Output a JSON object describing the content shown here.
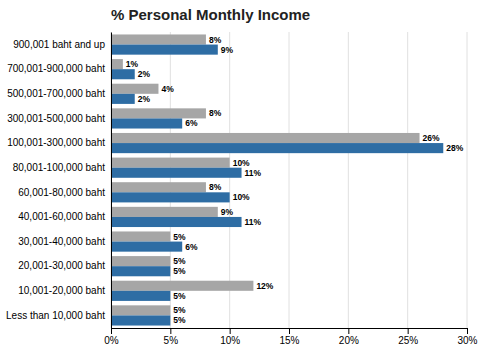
{
  "chart_data": {
    "type": "bar",
    "orientation": "horizontal",
    "title": "% Personal Monthly Income",
    "categories": [
      "Less than 10,000 baht",
      "10,001-20,000 baht",
      "20,001-30,000 baht",
      "30,001-40,000 baht",
      "40,001-60,000 baht",
      "60,001-80,000 baht",
      "80,001-100,000 baht",
      "100,001-300,000 baht",
      "300,001-500,000 baht",
      "500,001-700,000 baht",
      "700,001-900,000 baht",
      "900,001 baht and up"
    ],
    "series": [
      {
        "color": "#a6a6a6",
        "values": [
          5,
          12,
          5,
          5,
          9,
          8,
          10,
          26,
          8,
          4,
          1,
          8
        ],
        "value_labels": [
          "5%",
          "12%",
          "5%",
          "5%",
          "9%",
          "8%",
          "10%",
          "26%",
          "8%",
          "4%",
          "1%",
          "8%"
        ]
      },
      {
        "color": "#2e6da4",
        "values": [
          5,
          5,
          5,
          6,
          11,
          10,
          11,
          28,
          6,
          2,
          2,
          9
        ],
        "value_labels": [
          "5%",
          "5%",
          "5%",
          "6%",
          "11%",
          "10%",
          "11%",
          "28%",
          "6%",
          "2%",
          "2%",
          "9%"
        ]
      }
    ],
    "xlim": [
      0,
      30
    ],
    "xticks": [
      {
        "value": 0,
        "label": "0%"
      },
      {
        "value": 5,
        "label": "5%"
      },
      {
        "value": 10,
        "label": "10%"
      },
      {
        "value": 15,
        "label": "15%"
      },
      {
        "value": 20,
        "label": "20%"
      },
      {
        "value": 25,
        "label": "25%"
      },
      {
        "value": 30,
        "label": "30%"
      }
    ],
    "grid": true,
    "data_labels": true
  }
}
